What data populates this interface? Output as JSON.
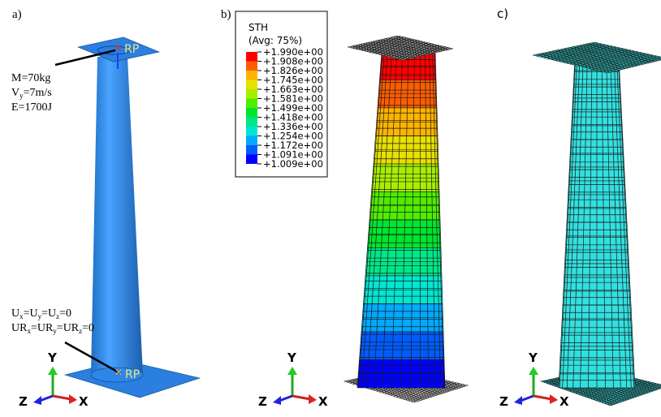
{
  "panels": {
    "a": "a)",
    "b": "b)",
    "c": "c)"
  },
  "load_annotation": [
    [
      "M=70kg"
    ],
    [
      "V",
      "y",
      "=7m/s"
    ],
    [
      "E=1700J"
    ]
  ],
  "bc_annotation": [
    [
      "U",
      "x",
      "=U",
      "y",
      "=U",
      "z",
      "=0"
    ],
    [
      "UR",
      "x",
      "=UR",
      "y",
      "=UR",
      "z",
      "=0"
    ]
  ],
  "reference_point": "RP",
  "legend": {
    "title": "STH",
    "subtitle": "(Avg: 75%)",
    "labels": [
      "+1.990e+00",
      "+1.908e+00",
      "+1.826e+00",
      "+1.745e+00",
      "+1.663e+00",
      "+1.581e+00",
      "+1.499e+00",
      "+1.418e+00",
      "+1.336e+00",
      "+1.254e+00",
      "+1.172e+00",
      "+1.091e+00",
      "+1.009e+00"
    ],
    "colors": [
      "#ff0000",
      "#ff5d00",
      "#ffb400",
      "#e8e000",
      "#a8ee00",
      "#4eee00",
      "#00e62c",
      "#00e887",
      "#00e6d2",
      "#00aaff",
      "#005cff",
      "#0000ff"
    ]
  },
  "axes": {
    "y": "Y",
    "z": "Z",
    "x": "X"
  }
}
